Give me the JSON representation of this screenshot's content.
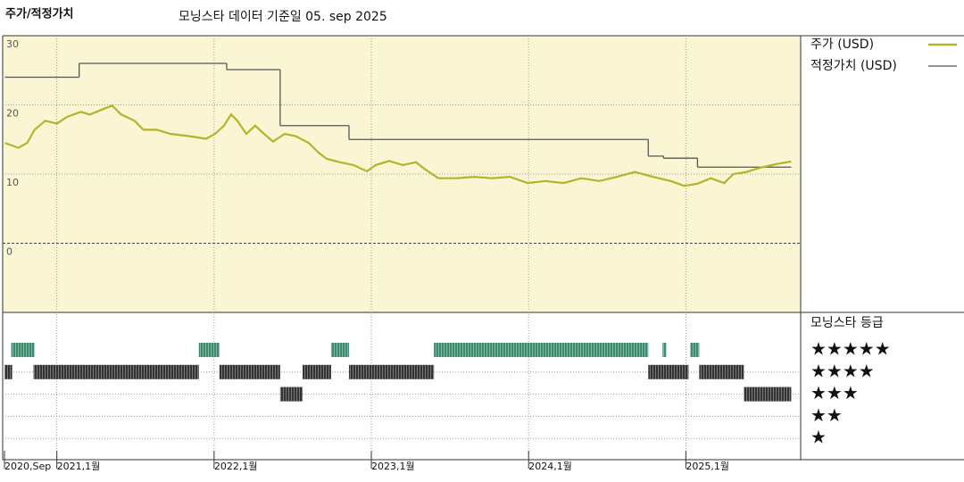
{
  "chart_data": {
    "type": "line",
    "title": "주가/적정가치",
    "subtitle": "모닝스타 데이터 기준일 05. sep 2025",
    "xlim": [
      2020.667,
      2025.73
    ],
    "xticks": [
      {
        "value": 2020.667,
        "label": "2020,Sep"
      },
      {
        "value": 2021,
        "label": "2021,1월"
      },
      {
        "value": 2022,
        "label": "2022,1월"
      },
      {
        "value": 2023,
        "label": "2023,1월"
      },
      {
        "value": 2024,
        "label": "2024,1월"
      },
      {
        "value": 2025,
        "label": "2025,1월"
      }
    ],
    "ylim": [
      -10,
      30
    ],
    "yticks": [
      0,
      10,
      20,
      30
    ],
    "grid": true,
    "legend": "right",
    "series": [
      {
        "name": "주가 (USD)",
        "color": "#b4b42a",
        "style": "line",
        "x": [
          2020.67,
          2020.756,
          2020.812,
          2020.858,
          2020.926,
          2021.0,
          2021.068,
          2021.153,
          2021.21,
          2021.295,
          2021.352,
          2021.409,
          2021.494,
          2021.551,
          2021.636,
          2021.722,
          2021.835,
          2021.949,
          2022.006,
          2022.063,
          2022.108,
          2022.148,
          2022.205,
          2022.261,
          2022.318,
          2022.375,
          2022.449,
          2022.517,
          2022.602,
          2022.659,
          2022.716,
          2022.801,
          2022.886,
          2022.972,
          2023.028,
          2023.114,
          2023.199,
          2023.284,
          2023.341,
          2023.426,
          2023.54,
          2023.653,
          2023.767,
          2023.881,
          2023.994,
          2024.108,
          2024.222,
          2024.335,
          2024.449,
          2024.563,
          2024.676,
          2024.79,
          2024.903,
          2024.989,
          2025.074,
          2025.159,
          2025.244,
          2025.301,
          2025.386,
          2025.472,
          2025.585,
          2025.67
        ],
        "values": [
          14.5,
          13.8,
          14.5,
          16.4,
          17.7,
          17.3,
          18.3,
          19,
          18.6,
          19.4,
          19.9,
          18.6,
          17.7,
          16.4,
          16.4,
          15.8,
          15.5,
          15.1,
          15.8,
          17,
          18.6,
          17.7,
          15.8,
          17,
          15.8,
          14.7,
          15.8,
          15.5,
          14.5,
          13.2,
          12.2,
          11.7,
          11.3,
          10.4,
          11.3,
          11.9,
          11.3,
          11.7,
          10.7,
          9.4,
          9.4,
          9.6,
          9.4,
          9.6,
          8.7,
          9,
          8.7,
          9.4,
          9,
          9.6,
          10.3,
          9.6,
          9,
          8.3,
          8.6,
          9.4,
          8.7,
          10,
          10.3,
          10.9,
          11.5,
          11.8
        ]
      },
      {
        "name": "적정가치 (USD)",
        "color": "#555555",
        "style": "step",
        "x": [
          2020.67,
          2021.142,
          2022.08,
          2022.42,
          2022.858,
          2024.761,
          2024.858,
          2025.074,
          2025.67
        ],
        "values": [
          24,
          26,
          25.1,
          17,
          15,
          12.6,
          12.3,
          11,
          11
        ]
      }
    ],
    "rating_title": "모닝스타 등급",
    "rating_labels": [
      "★★★★★",
      "★★★★",
      "★★★",
      "★★",
      "★"
    ],
    "rating_colors": [
      "#3d8c6f",
      "#333333",
      "#333333",
      "#333333",
      "#333333"
    ],
    "ratings": [
      {
        "start": 2020.71,
        "end": 2020.858,
        "stars": 5
      },
      {
        "start": 2021.903,
        "end": 2022.034,
        "stars": 5
      },
      {
        "start": 2022.744,
        "end": 2022.858,
        "stars": 5
      },
      {
        "start": 2023.398,
        "end": 2024.761,
        "stars": 5
      },
      {
        "start": 2024.852,
        "end": 2024.875,
        "stars": 5
      },
      {
        "start": 2025.028,
        "end": 2025.085,
        "stars": 5
      },
      {
        "start": 2020.667,
        "end": 2020.716,
        "stars": 4
      },
      {
        "start": 2020.852,
        "end": 2021.903,
        "stars": 4
      },
      {
        "start": 2022.034,
        "end": 2022.42,
        "stars": 4
      },
      {
        "start": 2022.563,
        "end": 2022.744,
        "stars": 4
      },
      {
        "start": 2022.858,
        "end": 2023.398,
        "stars": 4
      },
      {
        "start": 2024.761,
        "end": 2025.017,
        "stars": 4
      },
      {
        "start": 2025.085,
        "end": 2025.369,
        "stars": 4
      },
      {
        "start": 2022.42,
        "end": 2022.563,
        "stars": 3
      },
      {
        "start": 2025.369,
        "end": 2025.67,
        "stars": 3
      }
    ]
  }
}
